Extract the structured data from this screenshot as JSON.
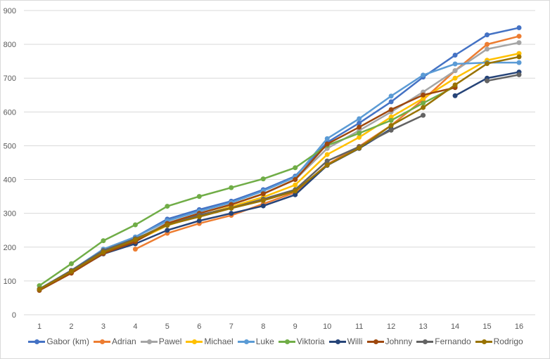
{
  "chart_data": {
    "type": "line",
    "title": "",
    "xlabel": "",
    "ylabel": "",
    "ylim": [
      0,
      900
    ],
    "yticks": [
      0,
      100,
      200,
      300,
      400,
      500,
      600,
      700,
      800,
      900
    ],
    "x": [
      1,
      2,
      3,
      4,
      5,
      6,
      7,
      8,
      9,
      10,
      11,
      12,
      13,
      14,
      15,
      16
    ],
    "grid": true,
    "legend_position": "bottom",
    "series": [
      {
        "name": "Gabor (km)",
        "color": "#4472C4",
        "values": [
          76,
          131,
          193,
          230,
          283,
          311,
          336,
          370,
          410,
          510,
          567,
          630,
          703,
          768,
          828,
          849
        ]
      },
      {
        "name": "Adrian",
        "color": "#ED7D31",
        "values": [
          null,
          null,
          null,
          194,
          241,
          270,
          294,
          328,
          362,
          445,
          498,
          560,
          636,
          722,
          800,
          824
        ]
      },
      {
        "name": "Pawel",
        "color": "#A5A5A5",
        "values": [
          76,
          128,
          190,
          222,
          272,
          300,
          326,
          357,
          400,
          492,
          545,
          600,
          659,
          722,
          786,
          805
        ]
      },
      {
        "name": "Michael",
        "color": "#FFC000",
        "values": [
          75,
          126,
          186,
          218,
          264,
          293,
          320,
          348,
          384,
          474,
          525,
          585,
          640,
          700,
          753,
          773
        ]
      },
      {
        "name": "Luke",
        "color": "#5B9BD5",
        "values": [
          76,
          131,
          194,
          230,
          278,
          306,
          332,
          366,
          407,
          521,
          580,
          647,
          709,
          742,
          746,
          746
        ]
      },
      {
        "name": "Viktoria",
        "color": "#70AD47",
        "values": [
          86,
          151,
          219,
          266,
          321,
          350,
          376,
          402,
          435,
          501,
          537,
          575,
          626,
          675,
          null,
          null
        ]
      },
      {
        "name": "Willi",
        "color": "#264478",
        "values": [
          74,
          125,
          180,
          210,
          250,
          278,
          300,
          322,
          355,
          442,
          492,
          550,
          null,
          648,
          700,
          718
        ]
      },
      {
        "name": "Johnny",
        "color": "#9E480E",
        "values": [
          72,
          123,
          181,
          216,
          270,
          300,
          326,
          358,
          400,
          505,
          555,
          607,
          650,
          672,
          null,
          null
        ]
      },
      {
        "name": "Fernando",
        "color": "#636363",
        "values": [
          76,
          131,
          190,
          225,
          265,
          295,
          316,
          342,
          370,
          455,
          497,
          546,
          590,
          null,
          692,
          710
        ]
      },
      {
        "name": "Rodrigo",
        "color": "#997300",
        "values": [
          75,
          128,
          185,
          222,
          266,
          290,
          315,
          338,
          366,
          443,
          493,
          560,
          613,
          680,
          743,
          763
        ]
      }
    ]
  }
}
